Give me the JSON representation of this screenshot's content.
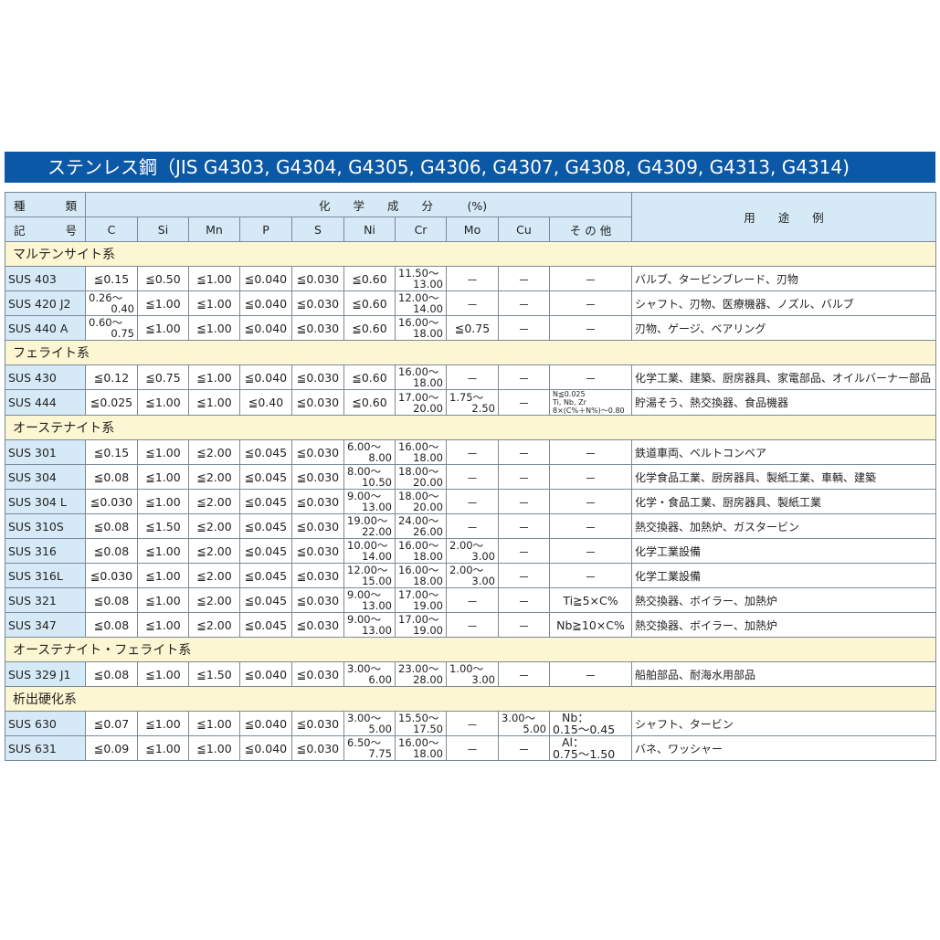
{
  "title": "ステンレス鋼（JIS G4303, G4304, G4305, G4306, G4307, G4308, G4309, G4313, G4314)",
  "header": {
    "kind": [
      "種",
      "類"
    ],
    "symbol": [
      "記",
      "号"
    ],
    "composition": "化　　学　　成　　分　　　(%)",
    "usage": "用　　途　　例",
    "columns": [
      "C",
      "Si",
      "Mn",
      "P",
      "S",
      "Ni",
      "Cr",
      "Mo",
      "Cu",
      "そ の 他"
    ]
  },
  "groups": [
    {
      "category": "マルテンサイト系",
      "rows": [
        {
          "name": "SUS 403",
          "values": [
            "≦0.15",
            "≦0.50",
            "≦1.00",
            "≦0.040",
            "≦0.030",
            "≦0.60",
            [
              "11.50～",
              "13.00"
            ],
            "－",
            "－",
            "－"
          ],
          "usage": "バルブ、タービンブレード、刃物"
        },
        {
          "name": "SUS 420 J2",
          "values": [
            [
              "0.26～",
              "0.40"
            ],
            "≦1.00",
            "≦1.00",
            "≦0.040",
            "≦0.030",
            "≦0.60",
            [
              "12.00～",
              "14.00"
            ],
            "－",
            "－",
            "－"
          ],
          "usage": "シャフト、刃物、医療機器、ノズル、バルブ"
        },
        {
          "name": "SUS 440 A",
          "values": [
            [
              "0.60～",
              "0.75"
            ],
            "≦1.00",
            "≦1.00",
            "≦0.040",
            "≦0.030",
            "≦0.60",
            [
              "16.00～",
              "18.00"
            ],
            "≦0.75",
            "－",
            "－"
          ],
          "usage": "刃物、ゲージ、ベアリング"
        }
      ]
    },
    {
      "category": "フェライト系",
      "rows": [
        {
          "name": "SUS 430",
          "values": [
            "≦0.12",
            "≦0.75",
            "≦1.00",
            "≦0.040",
            "≦0.030",
            "≦0.60",
            [
              "16.00～",
              "18.00"
            ],
            "－",
            "－",
            "－"
          ],
          "usage": "化学工業、建築、厨房器具、家電部品、オイルバーナー部品"
        },
        {
          "name": "SUS 444",
          "values": [
            "≦0.025",
            "≦1.00",
            "≦1.00",
            "≦0.40",
            "≦0.030",
            "≦0.60",
            [
              "17.00～",
              "20.00"
            ],
            [
              "1.75～",
              "2.50"
            ],
            "－",
            {
              "small": [
                "N≦0.025",
                "Ti, Nb, Zr",
                "8×(C%＋N%)～0.80"
              ]
            }
          ],
          "usage": "貯湯そう、熱交換器、食品機器"
        }
      ]
    },
    {
      "category": "オーステナイト系",
      "rows": [
        {
          "name": "SUS 301",
          "values": [
            "≦0.15",
            "≦1.00",
            "≦2.00",
            "≦0.045",
            "≦0.030",
            [
              "6.00～",
              "8.00"
            ],
            [
              "16.00～",
              "18.00"
            ],
            "－",
            "－",
            "－"
          ],
          "usage": "鉄道車両、ベルトコンベア"
        },
        {
          "name": "SUS 304",
          "values": [
            "≦0.08",
            "≦1.00",
            "≦2.00",
            "≦0.045",
            "≦0.030",
            [
              "8.00～",
              "10.50"
            ],
            [
              "18.00～",
              "20.00"
            ],
            "－",
            "－",
            "－"
          ],
          "usage": "化学食品工業、厨房器具、製紙工業、車輌、建築"
        },
        {
          "name": "SUS 304 L",
          "values": [
            "≦0.030",
            "≦1.00",
            "≦2.00",
            "≦0.045",
            "≦0.030",
            [
              "9.00～",
              "13.00"
            ],
            [
              "18.00～",
              "20.00"
            ],
            "－",
            "－",
            "－"
          ],
          "usage": "化学・食品工業、厨房器具、製紙工業"
        },
        {
          "name": "SUS 310S",
          "values": [
            "≦0.08",
            "≦1.50",
            "≦2.00",
            "≦0.045",
            "≦0.030",
            [
              "19.00～",
              "22.00"
            ],
            [
              "24.00～",
              "26.00"
            ],
            "－",
            "－",
            "－"
          ],
          "usage": "熱交換器、加熱炉、ガスタービン"
        },
        {
          "name": "SUS 316",
          "values": [
            "≦0.08",
            "≦1.00",
            "≦2.00",
            "≦0.045",
            "≦0.030",
            [
              "10.00～",
              "14.00"
            ],
            [
              "16.00～",
              "18.00"
            ],
            [
              "2.00～",
              "3.00"
            ],
            "－",
            "－"
          ],
          "usage": "化学工業設備"
        },
        {
          "name": "SUS 316L",
          "values": [
            "≦0.030",
            "≦1.00",
            "≦2.00",
            "≦0.045",
            "≦0.030",
            [
              "12.00～",
              "15.00"
            ],
            [
              "16.00～",
              "18.00"
            ],
            [
              "2.00～",
              "3.00"
            ],
            "－",
            "－"
          ],
          "usage": "化学工業設備"
        },
        {
          "name": "SUS 321",
          "values": [
            "≦0.08",
            "≦1.00",
            "≦2.00",
            "≦0.045",
            "≦0.030",
            [
              "9.00～",
              "13.00"
            ],
            [
              "17.00～",
              "19.00"
            ],
            "－",
            "－",
            "Ti≧5×C%"
          ],
          "usage": "熱交換器、ボイラー、加熱炉"
        },
        {
          "name": "SUS 347",
          "values": [
            "≦0.08",
            "≦1.00",
            "≦2.00",
            "≦0.045",
            "≦0.030",
            [
              "9.00～",
              "13.00"
            ],
            [
              "17.00～",
              "19.00"
            ],
            "－",
            "－",
            "Nb≧10×C%"
          ],
          "usage": "熱交換器、ボイラー、加熱炉"
        }
      ]
    },
    {
      "category": "オーステナイト・フェライト系",
      "rows": [
        {
          "name": "SUS 329 J1",
          "values": [
            "≦0.08",
            "≦1.00",
            "≦1.50",
            "≦0.040",
            "≦0.030",
            [
              "3.00～",
              "6.00"
            ],
            [
              "23.00～",
              "28.00"
            ],
            [
              "1.00～",
              "3.00"
            ],
            "－",
            "－"
          ],
          "usage": "船舶部品、耐海水用部品"
        }
      ]
    },
    {
      "category": "析出硬化系",
      "rows": [
        {
          "name": "SUS 630",
          "values": [
            "≦0.07",
            "≦1.00",
            "≦1.00",
            "≦0.040",
            "≦0.030",
            [
              "3.00～",
              "5.00"
            ],
            [
              "15.50～",
              "17.50"
            ],
            "－",
            [
              "3.00～",
              "5.00"
            ],
            {
              "two": [
                "Nb：",
                "0.15～0.45"
              ]
            }
          ],
          "usage": "シャフト、タービン"
        },
        {
          "name": "SUS 631",
          "values": [
            "≦0.09",
            "≦1.00",
            "≦1.00",
            "≦0.040",
            "≦0.030",
            [
              "6.50～",
              "7.75"
            ],
            [
              "16.00～",
              "18.00"
            ],
            "－",
            "－",
            {
              "two": [
                "Al：",
                "0.75～1.50"
              ]
            }
          ],
          "usage": "バネ、ワッシャー"
        }
      ]
    }
  ],
  "colors": {
    "title_bg": "#0b58a6",
    "header_bg": "#d5e9f6",
    "category_bg": "#fdf6d3"
  }
}
